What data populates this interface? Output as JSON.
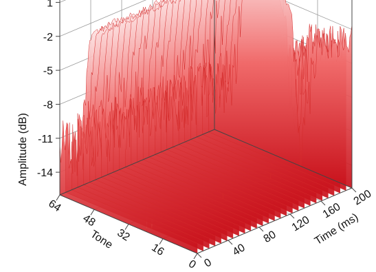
{
  "chart_data": {
    "type": "surface",
    "title": "",
    "xlabel": "Tone",
    "ylabel": "Time (ms)",
    "zlabel": "Amplitude (dB)",
    "x_ticks": [
      "0",
      "16",
      "32",
      "48",
      "64"
    ],
    "y_ticks": [
      "0",
      "40",
      "80",
      "120",
      "160",
      "200"
    ],
    "z_ticks": [
      "1",
      "-2",
      "-5",
      "-8",
      "-11",
      "-14"
    ],
    "xlim": [
      0,
      64
    ],
    "ylim": [
      0,
      200
    ],
    "zlim": [
      -16,
      2
    ],
    "colormap": [
      "#c8101a",
      "#f06a6a",
      "#fde6e6"
    ],
    "surface_profile": [
      {
        "tone": 0,
        "amplitude_db": -3
      },
      {
        "tone": 8,
        "amplitude_db": -4
      },
      {
        "tone": 16,
        "amplitude_db": -4
      },
      {
        "tone": 20,
        "amplitude_db": -9
      },
      {
        "tone": 24,
        "amplitude_db": -14
      },
      {
        "tone": 28,
        "amplitude_db": -3
      },
      {
        "tone": 36,
        "amplitude_db": 0
      },
      {
        "tone": 44,
        "amplitude_db": 0.5
      },
      {
        "tone": 50,
        "amplitude_db": -1
      },
      {
        "tone": 54,
        "amplitude_db": -10
      },
      {
        "tone": 58,
        "amplitude_db": -12
      },
      {
        "tone": 64,
        "amplitude_db": -12
      }
    ],
    "grid": true
  }
}
